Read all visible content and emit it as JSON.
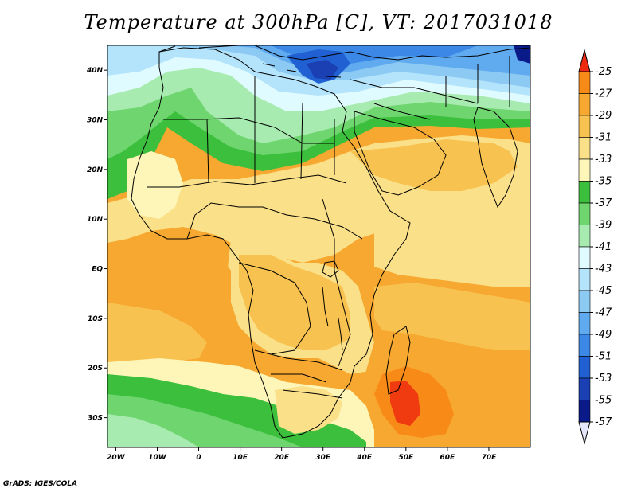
{
  "title": "Temperature at 300hPa [C], VT: 2017031018",
  "credit": "GrADS: IGES/COLA",
  "map": {
    "lon_range": [
      -22,
      80
    ],
    "lat_range": [
      -36,
      45
    ],
    "lat_ticks": [
      {
        "value": 40,
        "label": "40N"
      },
      {
        "value": 30,
        "label": "30N"
      },
      {
        "value": 20,
        "label": "20N"
      },
      {
        "value": 10,
        "label": "10N"
      },
      {
        "value": 0,
        "label": "EQ"
      },
      {
        "value": -10,
        "label": "10S"
      },
      {
        "value": -20,
        "label": "20S"
      },
      {
        "value": -30,
        "label": "30S"
      }
    ],
    "lon_ticks": [
      {
        "value": -20,
        "label": "20W"
      },
      {
        "value": -10,
        "label": "10W"
      },
      {
        "value": 0,
        "label": "0"
      },
      {
        "value": 10,
        "label": "10E"
      },
      {
        "value": 20,
        "label": "20E"
      },
      {
        "value": 30,
        "label": "30E"
      },
      {
        "value": 40,
        "label": "40E"
      },
      {
        "value": 50,
        "label": "50E"
      },
      {
        "value": 60,
        "label": "60E"
      },
      {
        "value": 70,
        "label": "70E"
      }
    ]
  },
  "colorbar": {
    "levels": [
      "-25",
      "-27",
      "-29",
      "-31",
      "-33",
      "-35",
      "-37",
      "-39",
      "-41",
      "-43",
      "-45",
      "-47",
      "-49",
      "-51",
      "-53",
      "-55",
      "-57"
    ],
    "colors": [
      "#f03a10",
      "#f88a18",
      "#f7a830",
      "#f8c250",
      "#fae088",
      "#fdf6b8",
      "#3cbf3c",
      "#6fd66f",
      "#a8ebb0",
      "#e0fbff",
      "#b4e4fb",
      "#8ccaf4",
      "#60aaef",
      "#3c88e6",
      "#2060d2",
      "#1a40b4",
      "#0a1a88"
    ],
    "top_triangle_color": "#ee2a10",
    "bottom_triangle_color": "#e6e6fa"
  }
}
